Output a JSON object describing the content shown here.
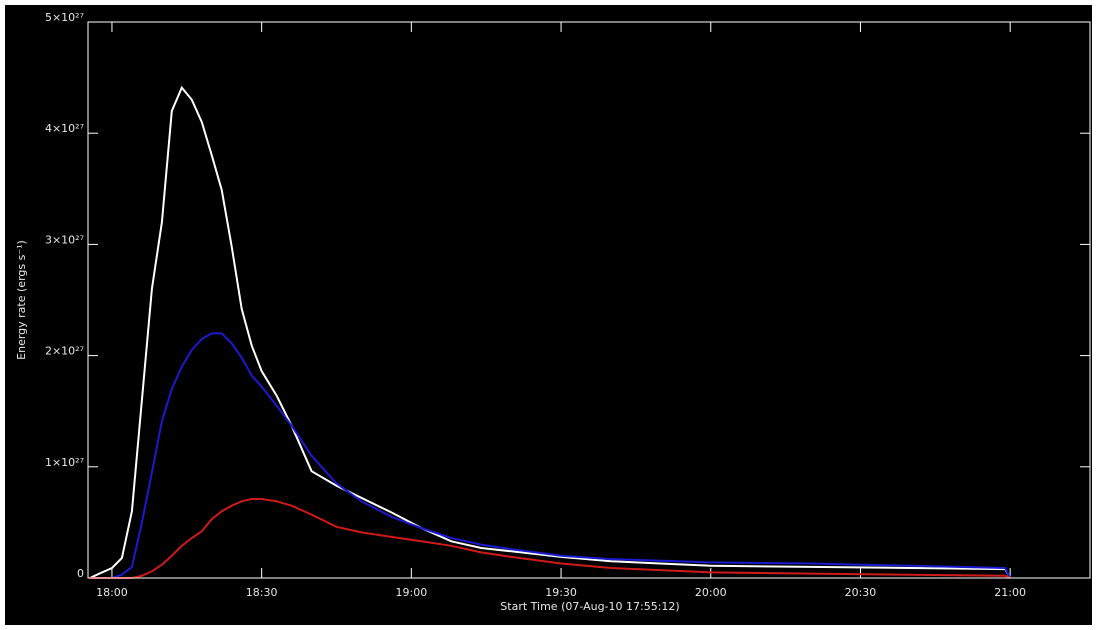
{
  "chart_data": {
    "type": "line",
    "xlabel": "Start Time (07-Aug-10 17:55:12)",
    "ylabel": "Energy rate (ergs s⁻¹)",
    "x": [
      -4.4,
      -2,
      0,
      2,
      4,
      6,
      8,
      10,
      12,
      14,
      16,
      18,
      20,
      22,
      24,
      26,
      28,
      30,
      33,
      36,
      40,
      45,
      50,
      56,
      62,
      68,
      74,
      80,
      90,
      100,
      120,
      140,
      160,
      179,
      180
    ],
    "series": [
      {
        "color": "#ffffff",
        "values": [
          0,
          5e+25,
          9e+25,
          1.8e+26,
          6e+26,
          1.6e+27,
          2.6e+27,
          3.2e+27,
          4.2e+27,
          4.41e+27,
          4.3e+27,
          4.1e+27,
          3.8e+27,
          3.49e+27,
          2.98e+27,
          2.42e+27,
          2.09e+27,
          1.86e+27,
          1.64e+27,
          1.37e+27,
          9.6e+26,
          8.3e+26,
          7.2e+26,
          5.9e+26,
          4.5e+26,
          3.3e+26,
          2.7e+26,
          2.4e+26,
          1.9e+26,
          1.5e+26,
          1.1e+26,
          1e+26,
          9e+25,
          8e+25,
          0
        ]
      },
      {
        "color": "#1a1ad0",
        "values": [
          0,
          0,
          0,
          3e+25,
          1e+26,
          5e+26,
          9.5e+26,
          1.41e+27,
          1.7e+27,
          1.9e+27,
          2.05e+27,
          2.15e+27,
          2.2e+27,
          2.2e+27,
          2.11e+27,
          1.98e+27,
          1.82e+27,
          1.72e+27,
          1.55e+27,
          1.37e+27,
          1.1e+27,
          8.5e+26,
          6.9e+26,
          5.5e+26,
          4.5e+26,
          3.6e+26,
          3e+26,
          2.6e+26,
          2e+26,
          1.7e+26,
          1.4e+26,
          1.3e+26,
          1.1e+26,
          9e+25,
          0
        ]
      },
      {
        "color": "#d01a1a",
        "values": [
          0,
          0,
          0,
          0,
          0,
          2e+25,
          6e+25,
          1.2e+26,
          2e+26,
          2.9e+26,
          3.6e+26,
          4.2e+26,
          5.3e+26,
          6e+26,
          6.5e+26,
          6.9e+26,
          7.1e+26,
          7.1e+26,
          6.9e+26,
          6.5e+26,
          5.7e+26,
          4.6e+26,
          4.1e+26,
          3.7e+26,
          3.3e+26,
          2.9e+26,
          2.3e+26,
          1.9e+26,
          1.3e+26,
          9e+25,
          5e+25,
          4e+25,
          3e+25,
          2e+25,
          0
        ]
      }
    ],
    "xlim": [
      -4.8,
      196
    ],
    "xticks": [
      {
        "value": 0,
        "label": "18:00"
      },
      {
        "value": 30,
        "label": "18:30"
      },
      {
        "value": 60,
        "label": "19:00"
      },
      {
        "value": 90,
        "label": "19:30"
      },
      {
        "value": 120,
        "label": "20:00"
      },
      {
        "value": 150,
        "label": "20:30"
      },
      {
        "value": 180,
        "label": "21:00"
      }
    ],
    "ylim": [
      0,
      5e+27
    ],
    "yticks": [
      0,
      {
        "value": 1e+27,
        "label": "1×10²⁷"
      },
      {
        "value": 2e+27,
        "label": "2×10²⁷"
      },
      {
        "value": 3e+27,
        "label": "3×10²⁷"
      },
      {
        "value": 4e+27,
        "label": "4×10²⁷"
      },
      {
        "value": 5e+27,
        "label": "5×10²⁷"
      }
    ],
    "axis_color": "#ffffff",
    "background": "#000000"
  }
}
